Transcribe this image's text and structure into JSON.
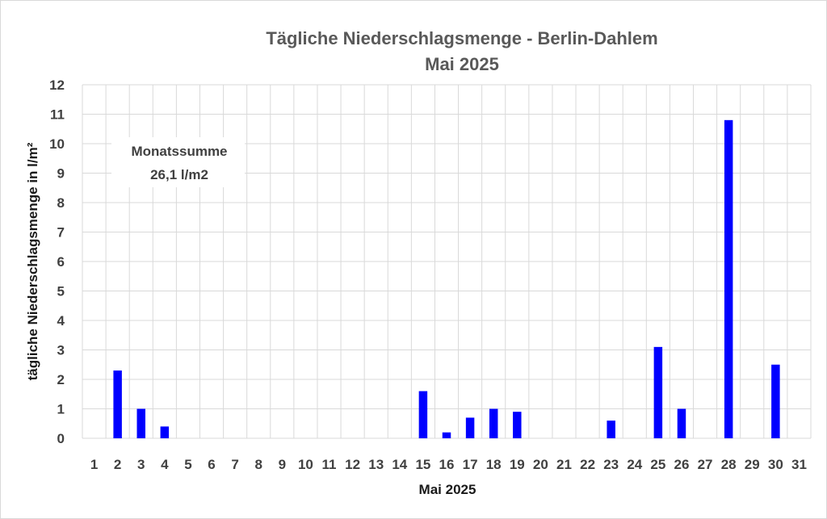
{
  "chart_data": {
    "type": "bar",
    "title": "Tägliche Niederschlagsmenge - Berlin-Dahlem",
    "subtitle": "Mai 2025",
    "xlabel": "Mai 2025",
    "ylabel": "tägliche Niederschlagsmenge in l/m²",
    "ylim": [
      0,
      12
    ],
    "yticks": [
      "0",
      "1",
      "2",
      "3",
      "4",
      "5",
      "6",
      "7",
      "8",
      "9",
      "10",
      "11",
      "12"
    ],
    "grid": true,
    "categories": [
      "1",
      "2",
      "3",
      "4",
      "5",
      "6",
      "7",
      "8",
      "9",
      "10",
      "11",
      "12",
      "13",
      "14",
      "15",
      "16",
      "17",
      "18",
      "19",
      "20",
      "21",
      "22",
      "23",
      "24",
      "25",
      "26",
      "27",
      "28",
      "29",
      "30",
      "31"
    ],
    "values": [
      0,
      2.3,
      1.0,
      0.4,
      0,
      0,
      0,
      0,
      0,
      0,
      0,
      0,
      0,
      0,
      1.6,
      0.2,
      0.7,
      1.0,
      0.9,
      0,
      0,
      0,
      0.6,
      0,
      3.1,
      1.0,
      0,
      10.8,
      0,
      2.5,
      0
    ],
    "bar_color": "#0000ff",
    "annotation": {
      "line1": "Monatssumme",
      "line2": "26,1 l/m2"
    }
  }
}
